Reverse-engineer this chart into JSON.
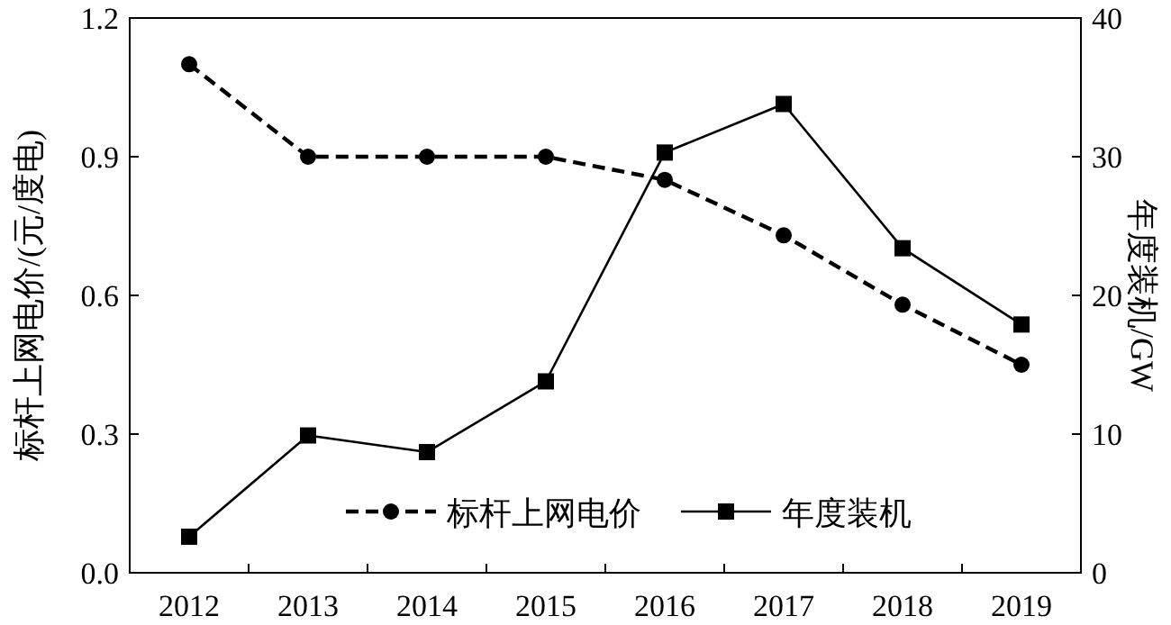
{
  "chart_data": {
    "type": "line",
    "categories": [
      "2012",
      "2013",
      "2014",
      "2015",
      "2016",
      "2017",
      "2018",
      "2019"
    ],
    "ylabel": "标杆上网电价/(元/度电)",
    "y2label": "年度装机/GW",
    "ylim": [
      0,
      1.2
    ],
    "yticks": [
      {
        "value": 0,
        "label": "0.0"
      },
      {
        "value": 0.3,
        "label": "0.3"
      },
      {
        "value": 0.6,
        "label": "0.6"
      },
      {
        "value": 0.9,
        "label": "0.9"
      },
      {
        "value": 1.2,
        "label": "1.2"
      }
    ],
    "y2lim": [
      0,
      40
    ],
    "y2ticks": [
      0,
      10,
      20,
      30,
      40
    ],
    "legend": "bottom right",
    "grid": false,
    "series": [
      {
        "name": "标杆上网电价",
        "color": "#000000",
        "marker": "circle",
        "line_style": "dashed",
        "values": [
          1.1,
          0.9,
          0.9,
          0.9,
          0.85,
          0.73,
          0.58,
          0.45
        ]
      },
      {
        "name": "年度装机",
        "color": "#000000",
        "marker": "square",
        "line_style": "solid",
        "axis": "y2",
        "values": [
          2.6,
          9.9,
          8.7,
          13.8,
          30.3,
          33.8,
          23.4,
          17.9
        ]
      }
    ]
  }
}
